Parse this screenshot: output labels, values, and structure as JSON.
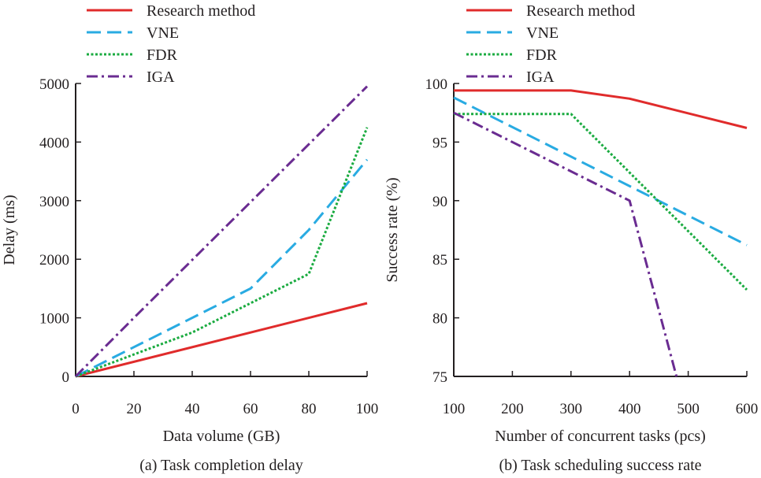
{
  "chart_data": [
    {
      "type": "line",
      "caption": "(a) Task completion delay",
      "xlabel": "Data volume (GB)",
      "ylabel": "Delay (ms)",
      "xlim": [
        0,
        100
      ],
      "ylim": [
        0,
        5000
      ],
      "xticks": [
        0,
        20,
        40,
        60,
        80,
        100
      ],
      "yticks": [
        0,
        1000,
        2000,
        3000,
        4000,
        5000
      ],
      "legend_position": "top-center",
      "series": [
        {
          "name": "Research method",
          "color": "#e02b2b",
          "style": "solid",
          "x": [
            0,
            100
          ],
          "y": [
            0,
            1250
          ]
        },
        {
          "name": "VNE",
          "color": "#29abe2",
          "style": "dashed",
          "x": [
            0,
            60,
            80,
            100
          ],
          "y": [
            0,
            1500,
            2500,
            3700
          ]
        },
        {
          "name": "FDR",
          "color": "#1aab40",
          "style": "dotted",
          "x": [
            0,
            40,
            80,
            100
          ],
          "y": [
            0,
            750,
            1750,
            4250
          ]
        },
        {
          "name": "IGA",
          "color": "#6a2c91",
          "style": "dashdot",
          "x": [
            0,
            20,
            100
          ],
          "y": [
            0,
            1000,
            4950
          ]
        }
      ]
    },
    {
      "type": "line",
      "caption": "(b) Task scheduling success rate",
      "xlabel": "Number of concurrent tasks (pcs)",
      "ylabel": "Success rate (%)",
      "xlim": [
        100,
        600
      ],
      "ylim": [
        75,
        100
      ],
      "xticks": [
        100,
        200,
        300,
        400,
        500,
        600
      ],
      "yticks": [
        75,
        80,
        85,
        90,
        95,
        100
      ],
      "legend_position": "top-center",
      "series": [
        {
          "name": "Research method",
          "color": "#e02b2b",
          "style": "solid",
          "x": [
            100,
            300,
            400,
            600
          ],
          "y": [
            99.4,
            99.4,
            98.7,
            96.2
          ]
        },
        {
          "name": "VNE",
          "color": "#29abe2",
          "style": "dashed",
          "x": [
            100,
            600
          ],
          "y": [
            98.8,
            86.2
          ]
        },
        {
          "name": "FDR",
          "color": "#1aab40",
          "style": "dotted",
          "x": [
            100,
            300,
            600
          ],
          "y": [
            97.4,
            97.4,
            82.4
          ]
        },
        {
          "name": "IGA",
          "color": "#6a2c91",
          "style": "dashdot",
          "x": [
            100,
            400,
            480
          ],
          "y": [
            97.5,
            90,
            75
          ]
        }
      ]
    }
  ]
}
